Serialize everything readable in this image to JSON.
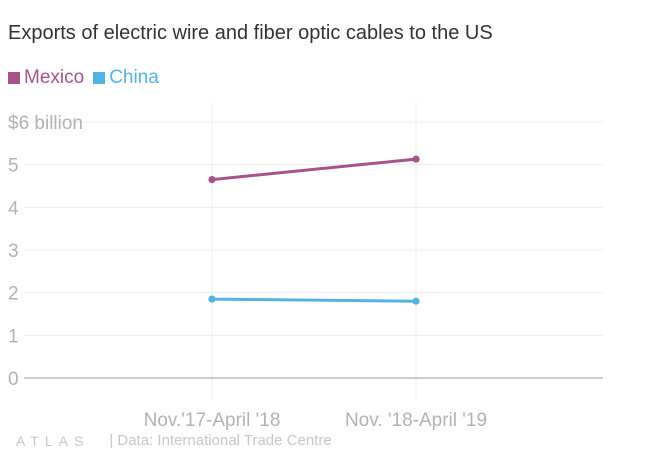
{
  "title": "Exports of electric wire and fiber optic cables to the US",
  "footer": {
    "logo": "ATLAS",
    "source": "| Data: International Trade Centre"
  },
  "chart_data": {
    "type": "line",
    "categories": [
      "Nov.'17-April '18",
      "Nov. '18-April '19"
    ],
    "series": [
      {
        "name": "Mexico",
        "color": "#a6548a",
        "values": [
          4.65,
          5.13
        ]
      },
      {
        "name": "China",
        "color": "#53b4e3",
        "values": [
          1.85,
          1.8
        ]
      }
    ],
    "ylim": [
      0,
      6
    ],
    "yticks": [
      {
        "value": 0,
        "label": "0"
      },
      {
        "value": 1,
        "label": "1"
      },
      {
        "value": 2,
        "label": "2"
      },
      {
        "value": 3,
        "label": "3"
      },
      {
        "value": 4,
        "label": "4"
      },
      {
        "value": 5,
        "label": "5"
      },
      {
        "value": 6,
        "label": "$6 billion"
      }
    ],
    "grid": true,
    "legend": "top-left"
  }
}
